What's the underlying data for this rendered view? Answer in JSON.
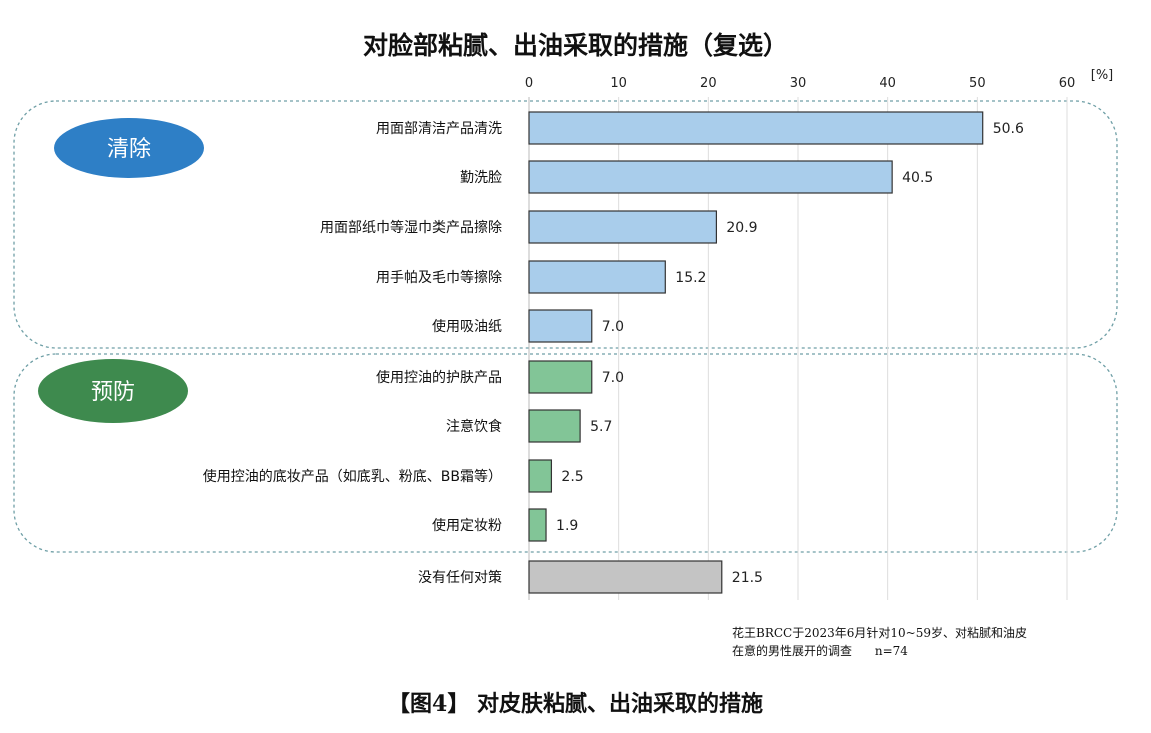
{
  "chart_data": {
    "type": "bar",
    "orientation": "horizontal",
    "title": "对脸部粘腻、出油采取的措施（复选）",
    "unit_label": "[%]",
    "xlim": [
      0,
      60
    ],
    "x_ticks": [
      0,
      10,
      20,
      30,
      40,
      50,
      60
    ],
    "grid": true,
    "groups": [
      {
        "name": "清除",
        "label_color": "#2e7fc6",
        "bar_color": "#a9cdeb",
        "categories": [
          "用面部清洁产品清洗",
          "勤洗脸",
          "用面部纸巾等湿巾类产品擦除",
          "用手帕及毛巾等擦除",
          "使用吸油纸"
        ],
        "values": [
          50.6,
          40.5,
          20.9,
          15.2,
          7.0
        ],
        "value_labels": [
          "50.6",
          "40.5",
          "20.9",
          "15.2",
          "7.0"
        ]
      },
      {
        "name": "预防",
        "label_color": "#3e8a4e",
        "bar_color": "#82c597",
        "categories": [
          "使用控油的护肤产品",
          "注意饮食",
          "使用控油的底妆产品（如底乳、粉底、BB霜等）",
          "使用定妆粉"
        ],
        "values": [
          7.0,
          5.7,
          2.5,
          1.9
        ],
        "value_labels": [
          "7.0",
          "5.7",
          "2.5",
          "1.9"
        ]
      },
      {
        "name": "",
        "label_color": "",
        "bar_color": "#c4c4c4",
        "categories": [
          "没有任何对策"
        ],
        "values": [
          21.5
        ],
        "value_labels": [
          "21.5"
        ]
      }
    ]
  },
  "note": "花王BRCC于2023年6月针对10~59岁、对粘腻和油皮\n在意的男性展开的调查      n=74",
  "caption": "【图4】 对皮肤粘腻、出油采取的措施"
}
